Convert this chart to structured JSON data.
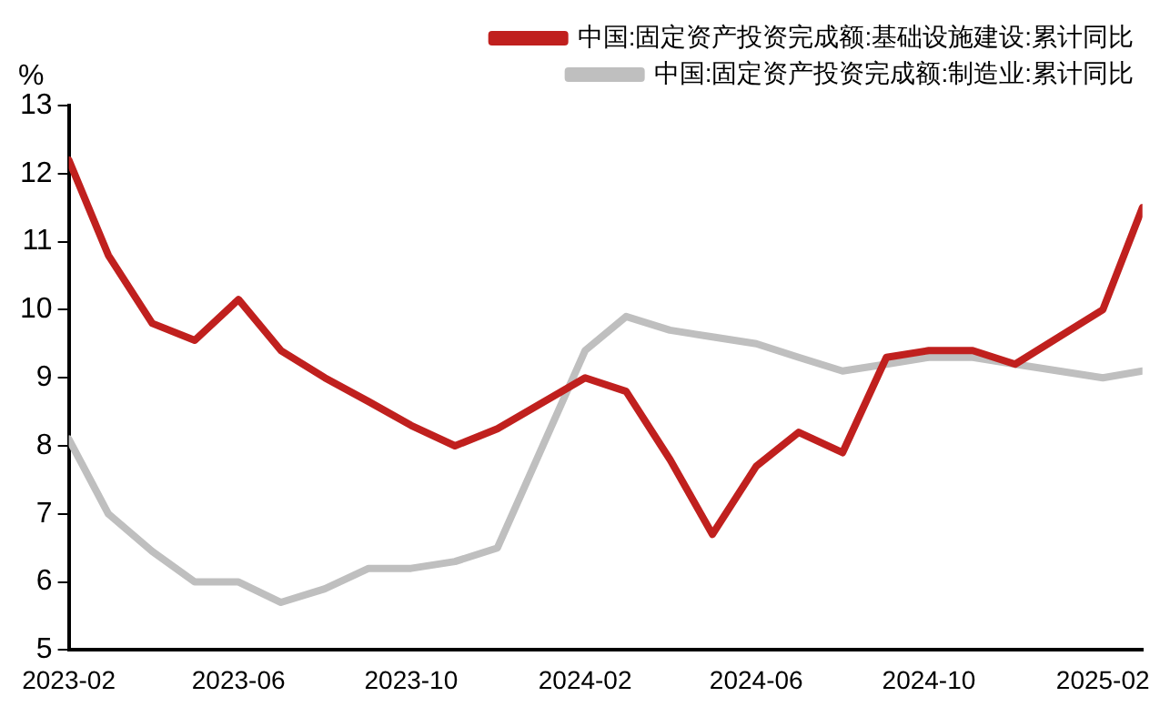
{
  "chart_data": {
    "type": "line",
    "ylabel": "%",
    "x": [
      "2023-02",
      "2023-03",
      "2023-04",
      "2023-05",
      "2023-06",
      "2023-07",
      "2023-08",
      "2023-09",
      "2023-10",
      "2023-11",
      "2023-12",
      "2024-02",
      "2024-03",
      "2024-04",
      "2024-05",
      "2024-06",
      "2024-07",
      "2024-08",
      "2024-09",
      "2024-10",
      "2024-11",
      "2024-12",
      "2025-02",
      "2025-03"
    ],
    "series": [
      {
        "name": "中国:固定资产投资完成额:基础设施建设:累计同比",
        "color": "#c0201e",
        "values": [
          12.2,
          10.8,
          9.8,
          9.55,
          10.15,
          9.4,
          9.0,
          8.65,
          8.3,
          8.0,
          8.25,
          9.0,
          8.8,
          7.8,
          6.7,
          7.7,
          8.2,
          7.9,
          9.3,
          9.4,
          9.4,
          9.2,
          10.0,
          11.5
        ]
      },
      {
        "name": "中国:固定资产投资完成额:制造业:累计同比",
        "color": "#bfbfbf",
        "values": [
          8.1,
          7.0,
          6.45,
          6.0,
          6.0,
          5.7,
          5.9,
          6.2,
          6.2,
          6.3,
          6.5,
          9.4,
          9.9,
          9.7,
          9.6,
          9.5,
          9.3,
          9.1,
          9.2,
          9.3,
          9.3,
          9.2,
          9.0,
          9.1
        ]
      }
    ],
    "xlim": [
      "2023-02",
      "2025-03"
    ],
    "xticks": [
      "2023-02",
      "2023-06",
      "2023-10",
      "2024-02",
      "2024-06",
      "2024-10",
      "2025-02"
    ],
    "ylim": [
      5,
      13
    ],
    "yticks": [
      5,
      6,
      7,
      8,
      9,
      10,
      11,
      12,
      13
    ],
    "grid": false,
    "legend": "top",
    "marker": "none",
    "line_style": "solid"
  }
}
